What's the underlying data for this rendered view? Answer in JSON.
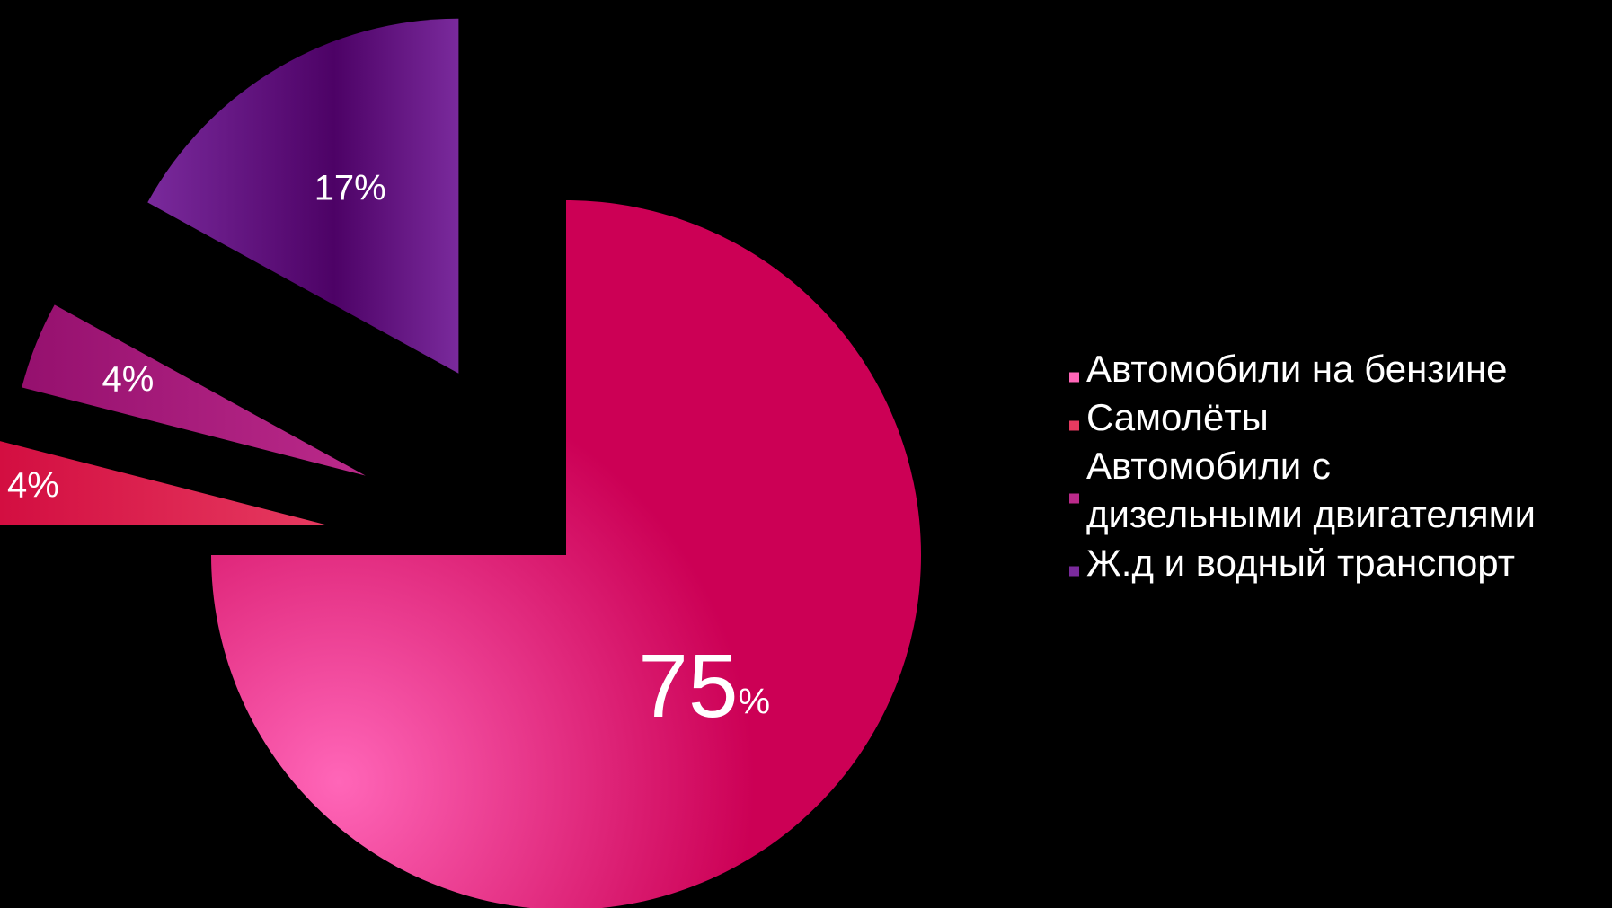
{
  "chart_data": {
    "type": "pie",
    "exploded": true,
    "legend_position": "right",
    "slices": [
      {
        "label": "Автомобили на бензине",
        "legend_lines": [
          "Автомобили на бензине"
        ],
        "value": 75,
        "value_text": "75",
        "suffix": "%",
        "color": "#cc0055",
        "color_light": "#ff66b8"
      },
      {
        "label": "Самолёты",
        "legend_lines": [
          "Самолёты"
        ],
        "value": 4,
        "value_text": "4%",
        "suffix": "",
        "color": "#d10a3e",
        "color_light": "#e63a60"
      },
      {
        "label": "Автомобили с дизельными двигателями",
        "legend_lines": [
          "Автомобили с",
          "дизельными двигателями"
        ],
        "value": 4,
        "value_text": "4%",
        "suffix": "",
        "color": "#95106e",
        "color_light": "#bb2a8a"
      },
      {
        "label": "Ж.д и водный транспорт",
        "legend_lines": [
          "Ж.д и водный транспорт"
        ],
        "value": 17,
        "value_text": "17%",
        "suffix": "",
        "color": "#4d0266",
        "color_light": "#7a2a9c"
      }
    ]
  }
}
